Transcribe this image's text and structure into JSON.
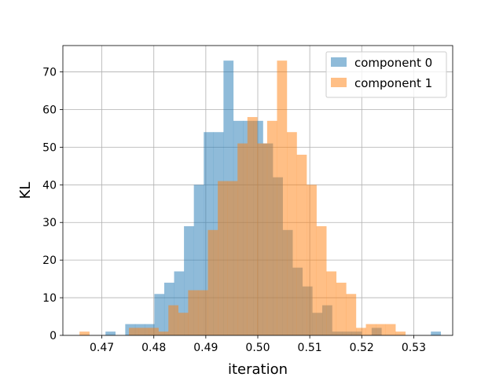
{
  "chart_data": {
    "type": "histogram",
    "xlabel": "iteration",
    "ylabel": "KL",
    "xlim": [
      0.4625,
      0.5375
    ],
    "ylim": [
      0,
      77
    ],
    "x_ticks": [
      0.47,
      0.48,
      0.49,
      0.5,
      0.51,
      0.52,
      0.53
    ],
    "x_tick_labels": [
      "0.47",
      "0.48",
      "0.49",
      "0.50",
      "0.51",
      "0.52",
      "0.53"
    ],
    "y_ticks": [
      0,
      10,
      20,
      30,
      40,
      50,
      60,
      70
    ],
    "y_tick_labels": [
      "0",
      "10",
      "20",
      "30",
      "40",
      "50",
      "60",
      "70"
    ],
    "grid": true,
    "legend_position": "top-right",
    "series": [
      {
        "name": "component 0",
        "color": "#1f77b4",
        "alpha": 0.5,
        "bins": [
          [
            0.4707,
            0.4726,
            1
          ],
          [
            0.4726,
            0.4745,
            0
          ],
          [
            0.4745,
            0.4764,
            3
          ],
          [
            0.4764,
            0.4783,
            3
          ],
          [
            0.4783,
            0.4801,
            3
          ],
          [
            0.4801,
            0.482,
            11
          ],
          [
            0.482,
            0.4839,
            14
          ],
          [
            0.4839,
            0.4858,
            17
          ],
          [
            0.4858,
            0.4877,
            29
          ],
          [
            0.4877,
            0.4896,
            40
          ],
          [
            0.4896,
            0.4915,
            54
          ],
          [
            0.4915,
            0.4934,
            54
          ],
          [
            0.4934,
            0.4953,
            73
          ],
          [
            0.4953,
            0.4972,
            57
          ],
          [
            0.4972,
            0.4991,
            57
          ],
          [
            0.4991,
            0.501,
            57
          ],
          [
            0.501,
            0.5029,
            51
          ],
          [
            0.5029,
            0.5048,
            42
          ],
          [
            0.5048,
            0.5067,
            28
          ],
          [
            0.5067,
            0.5086,
            18
          ],
          [
            0.5086,
            0.5105,
            13
          ],
          [
            0.5105,
            0.5124,
            6
          ],
          [
            0.5124,
            0.5143,
            8
          ],
          [
            0.5143,
            0.5162,
            1
          ],
          [
            0.5162,
            0.5181,
            1
          ],
          [
            0.5181,
            0.52,
            1
          ],
          [
            0.52,
            0.5219,
            0
          ],
          [
            0.5219,
            0.5238,
            2
          ],
          [
            0.5238,
            0.5257,
            0
          ],
          [
            0.5257,
            0.5276,
            0
          ],
          [
            0.5276,
            0.5295,
            0
          ],
          [
            0.5295,
            0.5314,
            0
          ],
          [
            0.5314,
            0.5333,
            0
          ],
          [
            0.5333,
            0.5352,
            1
          ]
        ]
      },
      {
        "name": "component 1",
        "color": "#ff7f0e",
        "alpha": 0.5,
        "bins": [
          [
            0.4657,
            0.4676,
            1
          ],
          [
            0.4676,
            0.4695,
            0
          ],
          [
            0.4695,
            0.4714,
            0
          ],
          [
            0.4714,
            0.4733,
            0
          ],
          [
            0.4733,
            0.4752,
            0
          ],
          [
            0.4752,
            0.4771,
            2
          ],
          [
            0.4771,
            0.479,
            2
          ],
          [
            0.479,
            0.4809,
            2
          ],
          [
            0.4809,
            0.4828,
            1
          ],
          [
            0.4828,
            0.4847,
            8
          ],
          [
            0.4847,
            0.4866,
            6
          ],
          [
            0.4866,
            0.4885,
            12
          ],
          [
            0.4885,
            0.4904,
            12
          ],
          [
            0.4904,
            0.4923,
            28
          ],
          [
            0.4923,
            0.4942,
            41
          ],
          [
            0.4942,
            0.4961,
            41
          ],
          [
            0.4961,
            0.498,
            51
          ],
          [
            0.498,
            0.4999,
            58
          ],
          [
            0.4999,
            0.5018,
            51
          ],
          [
            0.5018,
            0.5037,
            57
          ],
          [
            0.5037,
            0.5056,
            73
          ],
          [
            0.5056,
            0.5075,
            54
          ],
          [
            0.5075,
            0.5094,
            48
          ],
          [
            0.5094,
            0.5113,
            40
          ],
          [
            0.5113,
            0.5132,
            29
          ],
          [
            0.5132,
            0.5151,
            17
          ],
          [
            0.5151,
            0.517,
            14
          ],
          [
            0.517,
            0.5189,
            11
          ],
          [
            0.5189,
            0.5208,
            2
          ],
          [
            0.5208,
            0.5227,
            3
          ],
          [
            0.5227,
            0.5246,
            3
          ],
          [
            0.5246,
            0.5265,
            3
          ],
          [
            0.5265,
            0.5284,
            1
          ]
        ]
      }
    ]
  }
}
